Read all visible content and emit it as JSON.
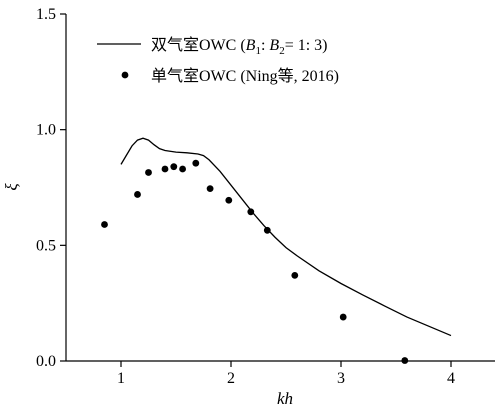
{
  "chart_data": {
    "type": "line",
    "xlabel": "kh",
    "ylabel": "ξ",
    "xlim": [
      0.5,
      4.4
    ],
    "ylim": [
      0.0,
      1.5
    ],
    "x_ticks": [
      1,
      2,
      3,
      4
    ],
    "x_tick_labels": [
      "1",
      "2",
      "3",
      "4"
    ],
    "y_ticks": [
      0.0,
      0.5,
      1.0,
      1.5
    ],
    "y_tick_labels": [
      "0.0",
      "0.5",
      "1.0",
      "1.5"
    ],
    "grid": false,
    "legend_position": "top-left",
    "legend": {
      "series1_prefix": "双气室OWC (",
      "series1_b1": "B",
      "series1_sub1": "1",
      "series1_mid": ": ",
      "series1_b2": "B",
      "series1_sub2": "2",
      "series1_suffix": "= 1: 3)",
      "series2": "单气室OWC (Ning等, 2016)"
    },
    "series": [
      {
        "kind": "line",
        "x": [
          1.0,
          1.05,
          1.1,
          1.15,
          1.2,
          1.25,
          1.3,
          1.35,
          1.4,
          1.5,
          1.6,
          1.7,
          1.75,
          1.8,
          1.9,
          2.0,
          2.1,
          2.2,
          2.3,
          2.4,
          2.5,
          2.6,
          2.8,
          3.0,
          3.2,
          3.4,
          3.6,
          3.8,
          4.0
        ],
        "y": [
          0.85,
          0.89,
          0.93,
          0.955,
          0.963,
          0.955,
          0.935,
          0.918,
          0.91,
          0.903,
          0.9,
          0.895,
          0.888,
          0.87,
          0.82,
          0.76,
          0.7,
          0.64,
          0.585,
          0.535,
          0.49,
          0.455,
          0.39,
          0.335,
          0.285,
          0.237,
          0.19,
          0.15,
          0.11
        ]
      },
      {
        "kind": "scatter",
        "x": [
          0.85,
          1.15,
          1.25,
          1.4,
          1.48,
          1.56,
          1.68,
          1.81,
          1.98,
          2.18,
          2.33,
          2.58,
          3.02,
          3.58
        ],
        "y": [
          0.59,
          0.72,
          0.815,
          0.83,
          0.84,
          0.83,
          0.855,
          0.745,
          0.695,
          0.645,
          0.565,
          0.37,
          0.19,
          0.002
        ]
      }
    ]
  }
}
